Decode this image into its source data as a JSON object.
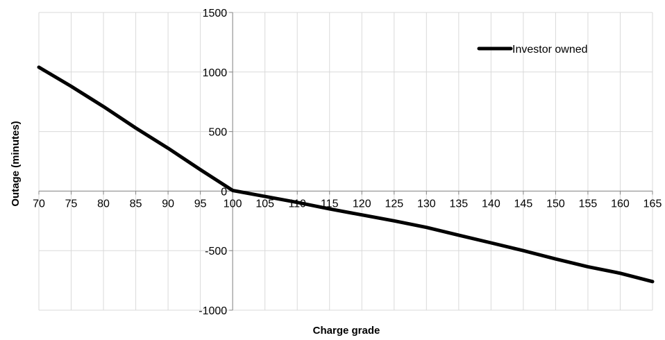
{
  "chart_data": {
    "type": "line",
    "title": "",
    "xlabel": "Charge grade",
    "ylabel": "Outage (minutes)",
    "xlim": [
      70,
      165
    ],
    "ylim": [
      -1000,
      1500
    ],
    "xticks": [
      70,
      75,
      80,
      85,
      90,
      95,
      100,
      105,
      110,
      115,
      120,
      125,
      130,
      135,
      140,
      145,
      150,
      155,
      160,
      165
    ],
    "yticks": [
      -1000,
      -500,
      0,
      500,
      1000,
      1500
    ],
    "grid": true,
    "legend_position": "top-right",
    "series": [
      {
        "name": "Investor owned",
        "color": "#000000",
        "x": [
          70,
          75,
          80,
          85,
          90,
          95,
          100,
          105,
          110,
          115,
          120,
          125,
          130,
          135,
          140,
          145,
          150,
          155,
          160,
          165
        ],
        "y": [
          1040,
          880,
          710,
          530,
          360,
          180,
          5,
          -45,
          -95,
          -150,
          -200,
          -250,
          -305,
          -370,
          -435,
          -500,
          -570,
          -635,
          -690,
          -760
        ]
      }
    ]
  }
}
